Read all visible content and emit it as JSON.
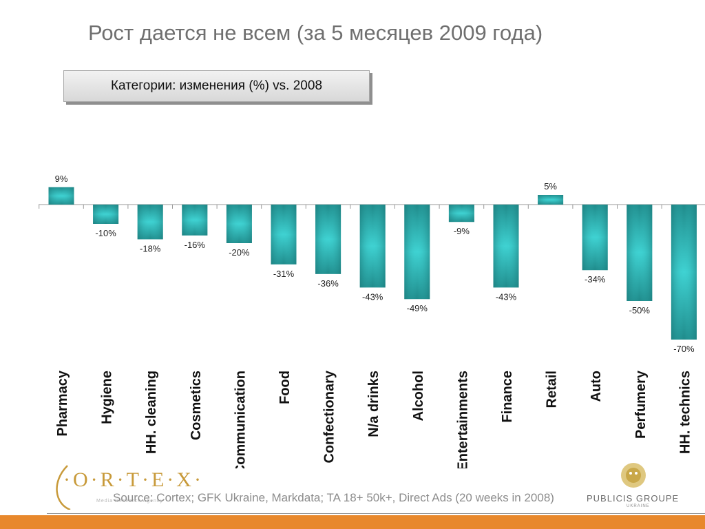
{
  "slide": {
    "title": "Рост дается не всем (за 5 месяцев 2009 года)",
    "subtitle": "Категории: изменения (%) vs. 2008",
    "source": "Source: Cortex; GFK Ukraine, Markdata; TA 18+ 50k+, Direct Ads (20 weeks in 2008)"
  },
  "logos": {
    "left": {
      "name": "cortex-logo",
      "text": "·O·R·T·E·X·",
      "tagline": "Media Research Agency",
      "color": "#c89a3a"
    },
    "right": {
      "name": "publicis-groupe-logo",
      "text": "PUBLICIS GROUPE",
      "sub": "UKRAINE",
      "color": "#c9a84a"
    }
  },
  "chart_data": {
    "type": "bar",
    "title": "",
    "xlabel": "",
    "ylabel": "",
    "ylim": [
      -70,
      9
    ],
    "grid": false,
    "legend": "none",
    "categories": [
      "Pharmacy",
      "Hygiene",
      "HH. cleaning",
      "Cosmetics",
      "Communication",
      "Food",
      "Confectionary",
      "N/a drinks",
      "Alcohol",
      "Entertainments",
      "Finance",
      "Retail",
      "Auto",
      "Perfumery",
      "HH. technics"
    ],
    "values": [
      9,
      -10,
      -18,
      -16,
      -20,
      -31,
      -36,
      -43,
      -49,
      -9,
      -43,
      5,
      -34,
      -50,
      -70
    ],
    "data_labels": [
      "9%",
      "-10%",
      "-18%",
      "-16%",
      "-20%",
      "-31%",
      "-36%",
      "-43%",
      "-49%",
      "-9%",
      "-43%",
      "5%",
      "-34%",
      "-50%",
      "-70%"
    ],
    "colors": {
      "bar_edge": "#1e8a8a",
      "bar_center": "#3fd2d2",
      "axis": "#9a9a9a"
    }
  },
  "colors": {
    "title": "#6f6f6f",
    "footer_band": "#e8882c",
    "source_text": "#8c8c8c"
  }
}
